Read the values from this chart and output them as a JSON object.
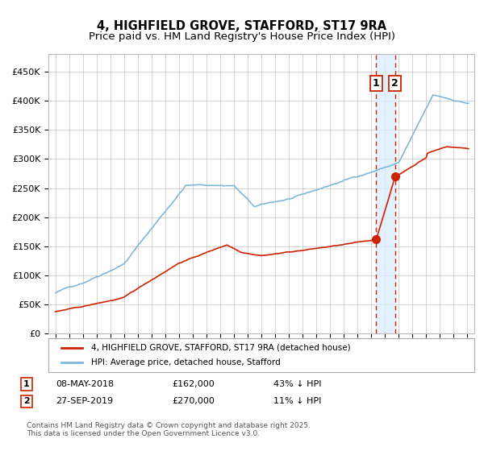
{
  "title": "4, HIGHFIELD GROVE, STAFFORD, ST17 9RA",
  "subtitle": "Price paid vs. HM Land Registry's House Price Index (HPI)",
  "xlim": [
    1994.5,
    2025.5
  ],
  "ylim": [
    0,
    480000
  ],
  "yticks": [
    0,
    50000,
    100000,
    150000,
    200000,
    250000,
    300000,
    350000,
    400000,
    450000
  ],
  "hpi_color": "#7fb8d8",
  "price_color": "#cc2200",
  "t1_x": 2018.35,
  "t1_price": 162000,
  "t2_x": 2019.73,
  "t2_price": 270000,
  "shade_color": "#ddeeff",
  "legend_house": "4, HIGHFIELD GROVE, STAFFORD, ST17 9RA (detached house)",
  "legend_hpi": "HPI: Average price, detached house, Stafford",
  "footer": "Contains HM Land Registry data © Crown copyright and database right 2025.\nThis data is licensed under the Open Government Licence v3.0.",
  "background_color": "#ffffff",
  "grid_color": "#cccccc",
  "title_fontsize": 10.5,
  "subtitle_fontsize": 9.5,
  "label_fontsize": 8.5
}
